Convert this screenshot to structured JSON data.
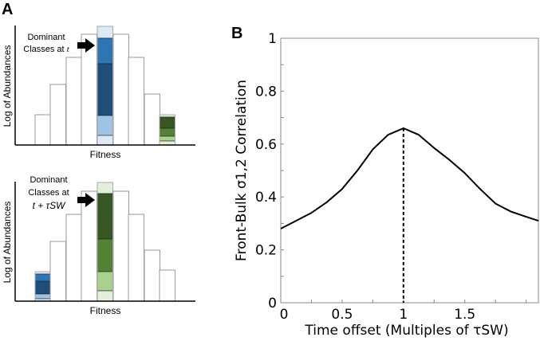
{
  "panel_a": {
    "label": "A",
    "top": {
      "ylabel": "Log of Abundances",
      "xlabel": "Fitness",
      "annotation_line1": "Dominant",
      "annotation_line2": "Classes at",
      "annotation_var": "t"
    },
    "bottom": {
      "ylabel": "Log of Abundances",
      "xlabel": "Fitness",
      "annotation_line1": "Dominant",
      "annotation_line2": "Classes at",
      "annotation_var": "t + τSW"
    },
    "colors": {
      "blue_pale": "#dde9f6",
      "blue": "#2e75b6",
      "blue_dark": "#1f4e79",
      "blue_light": "#9dc3e6",
      "green_pale": "#e2efda",
      "green_dark": "#375623",
      "green": "#548235",
      "green_light": "#a9d18e",
      "bar_edge": "#999999"
    }
  },
  "chart_data": {
    "type": "line",
    "panel_label": "B",
    "title": "",
    "xlabel": "Time offset (Multiples of τSW)",
    "ylabel": "Front-Bulk σ1,2 Correlation",
    "xlim": [
      0,
      2.1
    ],
    "ylim": [
      0,
      1
    ],
    "xticks": [
      "0",
      "0.5",
      "1",
      "1.5"
    ],
    "yticks": [
      "0",
      "0.2",
      "0.4",
      "0.6",
      "0.8",
      "1"
    ],
    "series": [
      {
        "name": "correlation",
        "x": [
          0,
          0.125,
          0.25,
          0.375,
          0.5,
          0.625,
          0.75,
          0.875,
          1.0,
          1.125,
          1.25,
          1.375,
          1.5,
          1.625,
          1.75,
          1.875,
          2.0,
          2.1
        ],
        "y": [
          0.28,
          0.31,
          0.34,
          0.38,
          0.43,
          0.5,
          0.58,
          0.635,
          0.66,
          0.635,
          0.585,
          0.54,
          0.49,
          0.43,
          0.375,
          0.345,
          0.325,
          0.31
        ]
      }
    ],
    "vline": {
      "x": 1.0,
      "style": "dashed"
    },
    "grid": false
  }
}
